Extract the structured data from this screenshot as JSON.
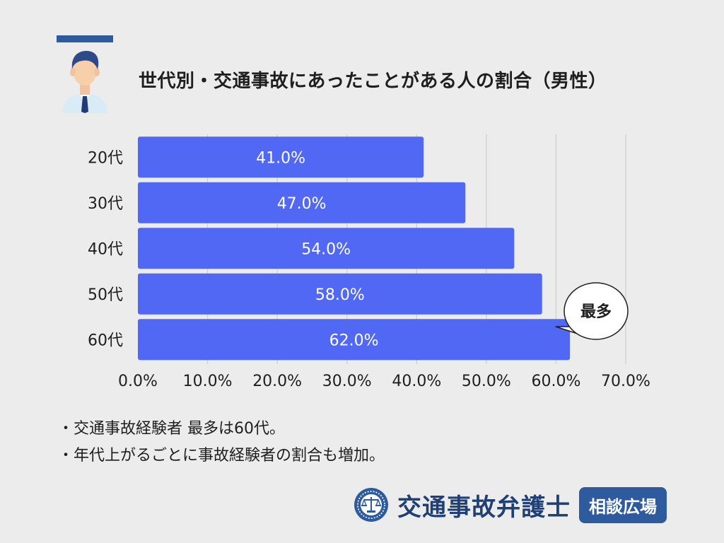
{
  "header": {
    "title": "世代別・交通事故にあったことがある人の割合（男性）"
  },
  "chart_data": {
    "type": "bar",
    "orientation": "horizontal",
    "title": "世代別・交通事故にあったことがある人の割合（男性）",
    "categories": [
      "20代",
      "30代",
      "40代",
      "50代",
      "60代"
    ],
    "values": [
      41.0,
      47.0,
      54.0,
      58.0,
      62.0
    ],
    "data_labels": [
      "41.0%",
      "47.0%",
      "54.0%",
      "58.0%",
      "62.0%"
    ],
    "xlim": [
      0,
      70
    ],
    "x_ticks": [
      0,
      10,
      20,
      30,
      40,
      50,
      60,
      70
    ],
    "x_tick_labels": [
      "0.0%",
      "10.0%",
      "20.0%",
      "30.0%",
      "40.0%",
      "50.0%",
      "60.0%",
      "70.0%"
    ],
    "grid": true,
    "bar_color": "#5168f5",
    "callout": {
      "text": "最多",
      "category": "60代"
    }
  },
  "notes": [
    {
      "marker": "・",
      "text": "交通事故経験者 最多は60代。"
    },
    {
      "marker": "・",
      "text": "年代上がるごとに事故経験者の割合も増加。"
    }
  ],
  "footer": {
    "brand_name": "交通事故弁護士",
    "brand_tag": "相談広場",
    "brand_color": "#2d5b9e"
  },
  "icons": {
    "avatar": "businessman-avatar-icon",
    "logo": "scales-of-justice-icon"
  }
}
